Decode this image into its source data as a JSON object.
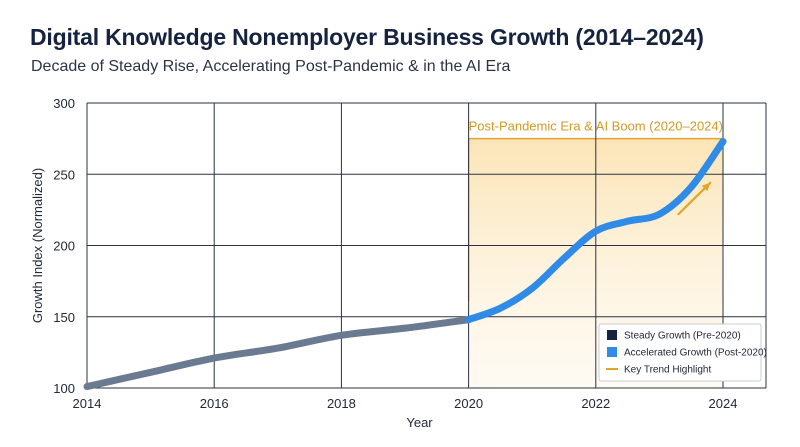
{
  "colors": {
    "steady": "#6a7a91",
    "accelerated": "#2f8be6",
    "highlight": "#e0a52a",
    "highlight_fill_top": "#fbe6be",
    "grid": "#2a3243"
  },
  "chart_data": {
    "type": "line",
    "title": "Digital Knowledge Nonemployer Business Growth (2014–2024)",
    "subtitle": "Decade of Steady Rise, Accelerating Post-Pandemic & in the AI Era",
    "xlabel": "Year",
    "ylabel": "Growth Index (Normalized)",
    "xlim": [
      2014,
      2024
    ],
    "ylim": [
      100,
      300
    ],
    "xticks": [
      2014,
      2016,
      2018,
      2020,
      2022,
      2024
    ],
    "yticks": [
      100,
      150,
      200,
      250,
      300
    ],
    "grid": true,
    "legend_position": "bottom-right",
    "series": [
      {
        "name": "Steady Growth (Pre-2020)",
        "color": "#6a7a91",
        "x": [
          2014,
          2015,
          2016,
          2017,
          2018,
          2019,
          2020
        ],
        "y": [
          101,
          111,
          121,
          128,
          137,
          142,
          148
        ]
      },
      {
        "name": "Accelerated Growth (Post-2020)",
        "color": "#2f8be6",
        "x": [
          2020,
          2020.5,
          2021,
          2021.5,
          2022,
          2022.5,
          2023,
          2023.5,
          2024
        ],
        "y": [
          148,
          156,
          170,
          191,
          210,
          217,
          222,
          241,
          273
        ]
      }
    ],
    "highlight": {
      "label": "Post-Pandemic Era & AI Boom (2020–2024)",
      "x_start": 2020,
      "x_end": 2024,
      "y_top": 275,
      "line_bottom": 161,
      "arrow_from": [
        2023.3,
        222
      ],
      "arrow_to": [
        2023.8,
        244
      ]
    },
    "legend": [
      {
        "label": "Steady Growth (Pre-2020)",
        "marker": "square",
        "color": "#15233f"
      },
      {
        "label": "Accelerated Growth (Post-2020)",
        "marker": "square",
        "color": "#2f8be6"
      },
      {
        "label": "Key Trend Highlight",
        "marker": "line",
        "color": "#e0a52a"
      }
    ]
  }
}
